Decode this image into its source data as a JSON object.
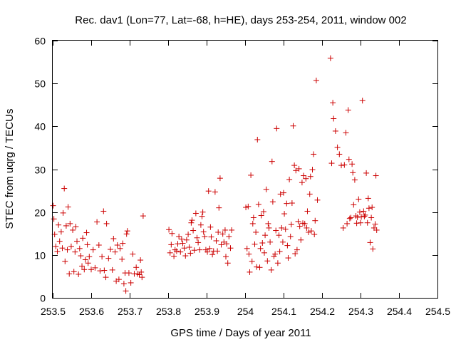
{
  "chart_data": {
    "type": "scatter",
    "title": "Rec. dav1 (Lon=77, Lat=-68, h=HE), days 253-254, 2011, window 002",
    "xlabel": "GPS time / Days of year 2011",
    "ylabel": "STEC from uqrg / TECUs",
    "xlim": [
      253.5,
      254.5
    ],
    "ylim": [
      0,
      60
    ],
    "xticks": [
      253.5,
      253.6,
      253.7,
      253.8,
      253.9,
      254.0,
      254.1,
      254.2,
      254.3,
      254.4,
      254.5
    ],
    "xtick_labels": [
      "253.5",
      "253.6",
      "253.7",
      "253.8",
      "253.9",
      "254",
      "254.1",
      "254.2",
      "254.3",
      "254.4",
      "254.5"
    ],
    "yticks": [
      0,
      10,
      20,
      30,
      40,
      50,
      60
    ],
    "ytick_labels": [
      "0",
      "10",
      "20",
      "30",
      "40",
      "50",
      "60"
    ],
    "grid": false,
    "legend": "none",
    "marker": "plus",
    "color": "#cc0000",
    "points": [
      [
        253.501,
        21.5
      ],
      [
        253.503,
        18.4
      ],
      [
        253.505,
        14.8
      ],
      [
        253.508,
        12.0
      ],
      [
        253.512,
        10.8
      ],
      [
        253.515,
        17.0
      ],
      [
        253.518,
        13.2
      ],
      [
        253.522,
        15.4
      ],
      [
        253.525,
        11.6
      ],
      [
        253.527,
        19.8
      ],
      [
        253.53,
        25.5
      ],
      [
        253.532,
        8.5
      ],
      [
        253.535,
        16.8
      ],
      [
        253.538,
        11.2
      ],
      [
        253.54,
        21.2
      ],
      [
        253.543,
        5.6
      ],
      [
        253.545,
        17.3
      ],
      [
        253.548,
        12.0
      ],
      [
        253.552,
        15.8
      ],
      [
        253.555,
        6.1
      ],
      [
        253.558,
        10.7
      ],
      [
        253.56,
        16.6
      ],
      [
        253.563,
        13.2
      ],
      [
        253.567,
        5.5
      ],
      [
        253.57,
        11.5
      ],
      [
        253.573,
        9.8
      ],
      [
        253.576,
        7.4
      ],
      [
        253.578,
        13.9
      ],
      [
        253.582,
        6.6
      ],
      [
        253.585,
        8.9
      ],
      [
        253.588,
        15.2
      ],
      [
        253.59,
        12.4
      ],
      [
        253.592,
        8.1
      ],
      [
        253.595,
        9.6
      ],
      [
        253.6,
        6.6
      ],
      [
        253.605,
        11.2
      ],
      [
        253.61,
        7.0
      ],
      [
        253.615,
        17.7
      ],
      [
        253.62,
        12.3
      ],
      [
        253.623,
        6.3
      ],
      [
        253.628,
        9.6
      ],
      [
        253.632,
        20.2
      ],
      [
        253.634,
        6.4
      ],
      [
        253.638,
        4.8
      ],
      [
        253.64,
        17.3
      ],
      [
        253.645,
        9.2
      ],
      [
        253.65,
        11.3
      ],
      [
        253.655,
        6.5
      ],
      [
        253.658,
        13.8
      ],
      [
        253.662,
        10.7
      ],
      [
        253.665,
        3.9
      ],
      [
        253.668,
        12.3
      ],
      [
        253.672,
        4.3
      ],
      [
        253.675,
        11.5
      ],
      [
        253.68,
        9.0
      ],
      [
        253.682,
        12.7
      ],
      [
        253.685,
        3.3
      ],
      [
        253.688,
        5.8
      ],
      [
        253.69,
        1.6
      ],
      [
        253.692,
        14.9
      ],
      [
        253.694,
        15.6
      ],
      [
        253.698,
        5.8
      ],
      [
        253.703,
        3.5
      ],
      [
        253.708,
        10.2
      ],
      [
        253.712,
        5.6
      ],
      [
        253.717,
        7.1
      ],
      [
        253.72,
        5.6
      ],
      [
        253.725,
        5.4
      ],
      [
        253.728,
        8.8
      ],
      [
        253.73,
        6.0
      ],
      [
        253.732,
        4.8
      ],
      [
        253.735,
        19.1
      ],
      [
        253.802,
        15.9
      ],
      [
        253.805,
        10.5
      ],
      [
        253.808,
        12.4
      ],
      [
        253.81,
        15.0
      ],
      [
        253.815,
        9.7
      ],
      [
        253.818,
        11.2
      ],
      [
        253.822,
        10.9
      ],
      [
        253.825,
        12.6
      ],
      [
        253.828,
        14.3
      ],
      [
        253.832,
        10.7
      ],
      [
        253.835,
        13.7
      ],
      [
        253.838,
        12.7
      ],
      [
        253.842,
        11.6
      ],
      [
        253.845,
        9.8
      ],
      [
        253.848,
        13.5
      ],
      [
        253.852,
        14.8
      ],
      [
        253.855,
        11.8
      ],
      [
        253.858,
        10.4
      ],
      [
        253.86,
        17.5
      ],
      [
        253.862,
        18.1
      ],
      [
        253.865,
        15.7
      ],
      [
        253.868,
        11.1
      ],
      [
        253.872,
        19.7
      ],
      [
        253.875,
        14.0
      ],
      [
        253.878,
        12.9
      ],
      [
        253.882,
        11.2
      ],
      [
        253.885,
        17.0
      ],
      [
        253.888,
        19.0
      ],
      [
        253.89,
        20.0
      ],
      [
        253.892,
        15.4
      ],
      [
        253.895,
        14.3
      ],
      [
        253.898,
        11.2
      ],
      [
        253.902,
        10.7
      ],
      [
        253.905,
        24.9
      ],
      [
        253.908,
        11.5
      ],
      [
        253.91,
        16.5
      ],
      [
        253.912,
        14.2
      ],
      [
        253.915,
        10.1
      ],
      [
        253.918,
        10.9
      ],
      [
        253.922,
        24.7
      ],
      [
        253.925,
        13.3
      ],
      [
        253.928,
        10.9
      ],
      [
        253.93,
        15.3
      ],
      [
        253.932,
        21.0
      ],
      [
        253.935,
        27.9
      ],
      [
        253.938,
        12.4
      ],
      [
        253.942,
        14.9
      ],
      [
        253.945,
        13.0
      ],
      [
        253.948,
        15.8
      ],
      [
        253.95,
        9.6
      ],
      [
        253.952,
        12.6
      ],
      [
        253.955,
        8.1
      ],
      [
        253.958,
        14.3
      ],
      [
        253.962,
        11.6
      ],
      [
        253.965,
        15.8
      ],
      [
        254.002,
        21.1
      ],
      [
        254.005,
        11.5
      ],
      [
        254.008,
        21.3
      ],
      [
        254.01,
        10.2
      ],
      [
        254.012,
        6.0
      ],
      [
        254.015,
        28.6
      ],
      [
        254.018,
        8.5
      ],
      [
        254.02,
        17.3
      ],
      [
        254.022,
        18.7
      ],
      [
        254.025,
        12.5
      ],
      [
        254.028,
        15.3
      ],
      [
        254.03,
        7.2
      ],
      [
        254.032,
        36.9
      ],
      [
        254.035,
        21.8
      ],
      [
        254.038,
        7.1
      ],
      [
        254.04,
        11.5
      ],
      [
        254.042,
        19.2
      ],
      [
        254.045,
        12.8
      ],
      [
        254.048,
        20.1
      ],
      [
        254.05,
        10.5
      ],
      [
        254.052,
        14.6
      ],
      [
        254.055,
        25.3
      ],
      [
        254.058,
        8.6
      ],
      [
        254.06,
        17.3
      ],
      [
        254.062,
        16.3
      ],
      [
        254.065,
        13.0
      ],
      [
        254.068,
        6.5
      ],
      [
        254.07,
        31.8
      ],
      [
        254.072,
        22.4
      ],
      [
        254.075,
        9.7
      ],
      [
        254.078,
        10.2
      ],
      [
        254.08,
        15.7
      ],
      [
        254.082,
        39.5
      ],
      [
        254.085,
        8.1
      ],
      [
        254.088,
        14.6
      ],
      [
        254.09,
        10.8
      ],
      [
        254.092,
        24.2
      ],
      [
        254.095,
        16.3
      ],
      [
        254.098,
        13.0
      ],
      [
        254.1,
        24.5
      ],
      [
        254.102,
        19.6
      ],
      [
        254.105,
        16.0
      ],
      [
        254.108,
        22.0
      ],
      [
        254.11,
        12.2
      ],
      [
        254.112,
        9.3
      ],
      [
        254.115,
        27.6
      ],
      [
        254.118,
        14.3
      ],
      [
        254.12,
        17.1
      ],
      [
        254.122,
        22.1
      ],
      [
        254.125,
        40.1
      ],
      [
        254.128,
        30.9
      ],
      [
        254.13,
        10.3
      ],
      [
        254.132,
        29.7
      ],
      [
        254.135,
        11.2
      ],
      [
        254.138,
        17.8
      ],
      [
        254.14,
        30.1
      ],
      [
        254.142,
        16.7
      ],
      [
        254.145,
        13.5
      ],
      [
        254.148,
        26.9
      ],
      [
        254.15,
        17.4
      ],
      [
        254.152,
        28.5
      ],
      [
        254.155,
        17.3
      ],
      [
        254.158,
        27.8
      ],
      [
        254.16,
        16.3
      ],
      [
        254.162,
        20.2
      ],
      [
        254.165,
        15.3
      ],
      [
        254.168,
        24.2
      ],
      [
        254.17,
        28.3
      ],
      [
        254.172,
        15.6
      ],
      [
        254.175,
        29.9
      ],
      [
        254.178,
        33.5
      ],
      [
        254.18,
        14.8
      ],
      [
        254.182,
        18.0
      ],
      [
        254.185,
        50.7
      ],
      [
        254.188,
        22.8
      ],
      [
        254.222,
        55.9
      ],
      [
        254.225,
        31.4
      ],
      [
        254.228,
        45.5
      ],
      [
        254.23,
        41.8
      ],
      [
        254.235,
        38.9
      ],
      [
        254.24,
        35.1
      ],
      [
        254.245,
        33.5
      ],
      [
        254.25,
        30.9
      ],
      [
        254.255,
        16.3
      ],
      [
        254.258,
        31.0
      ],
      [
        254.262,
        38.5
      ],
      [
        254.265,
        17.3
      ],
      [
        254.268,
        43.8
      ],
      [
        254.27,
        32.3
      ],
      [
        254.272,
        18.5
      ],
      [
        254.275,
        18.7
      ],
      [
        254.278,
        31.2
      ],
      [
        254.28,
        29.2
      ],
      [
        254.282,
        21.7
      ],
      [
        254.285,
        27.5
      ],
      [
        254.288,
        19.1
      ],
      [
        254.29,
        17.4
      ],
      [
        254.292,
        18.8
      ],
      [
        254.295,
        23.0
      ],
      [
        254.298,
        20.0
      ],
      [
        254.3,
        17.5
      ],
      [
        254.302,
        18.9
      ],
      [
        254.305,
        46.0
      ],
      [
        254.308,
        20.2
      ],
      [
        254.31,
        19.0
      ],
      [
        254.312,
        19.3
      ],
      [
        254.315,
        29.1
      ],
      [
        254.318,
        17.5
      ],
      [
        254.32,
        23.2
      ],
      [
        254.322,
        20.9
      ],
      [
        254.325,
        12.9
      ],
      [
        254.328,
        18.7
      ],
      [
        254.33,
        21.1
      ],
      [
        254.332,
        11.4
      ],
      [
        254.335,
        16.3
      ],
      [
        254.338,
        17.2
      ],
      [
        254.34,
        28.5
      ],
      [
        254.342,
        15.8
      ]
    ]
  }
}
